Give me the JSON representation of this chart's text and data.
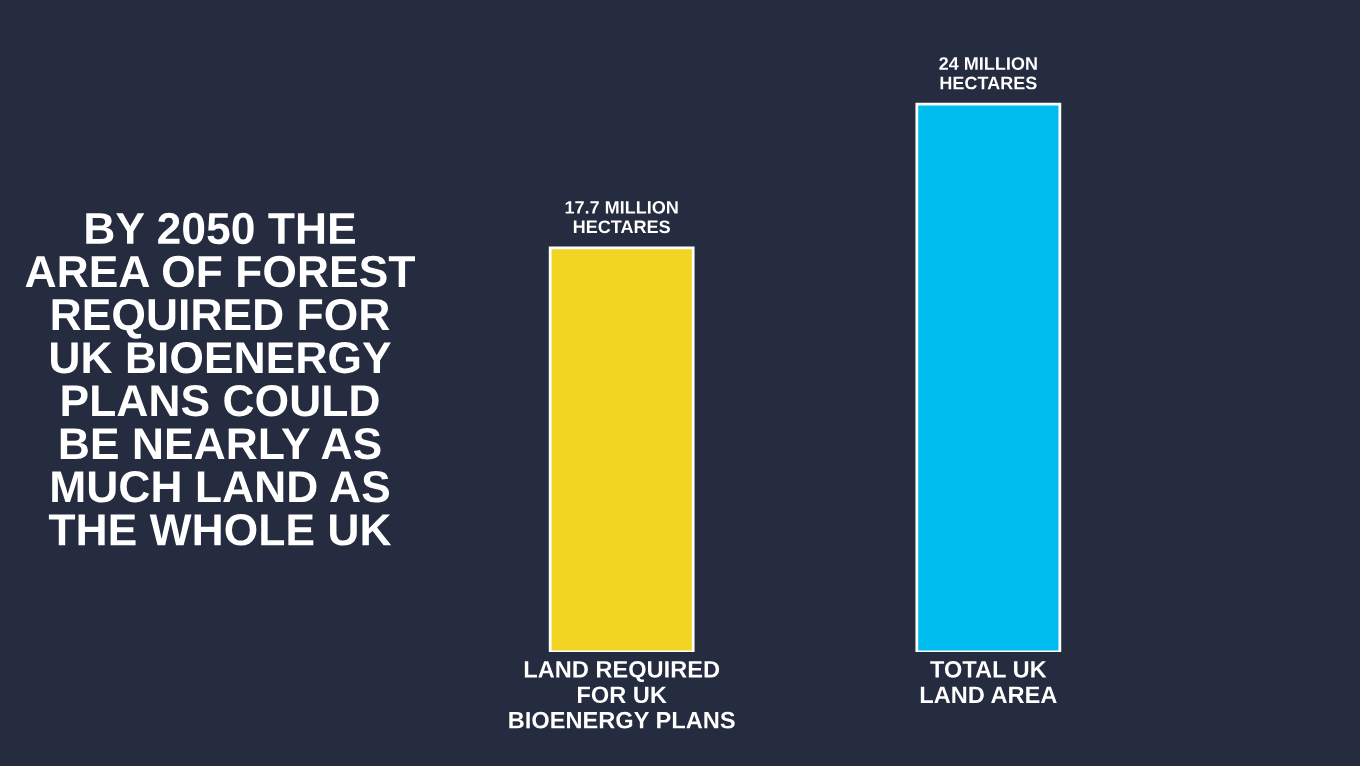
{
  "chart_data": {
    "type": "bar",
    "title": "BY 2050 THE\nAREA OF FOREST\nREQUIRED FOR\nUK BIOENERGY\nPLANS COULD\nBE NEARLY AS\nMUCH LAND AS\nTHE WHOLE UK",
    "categories": [
      "LAND REQUIRED\nFOR UK\nBIOENERGY PLANS",
      "TOTAL UK\nLAND AREA"
    ],
    "values": [
      17.7,
      24
    ],
    "colors": [
      "#f2d422",
      "#00bdf0"
    ],
    "value_labels": [
      "17.7 MILLION\nHECTARES",
      "24 MILLION\nHECTARES"
    ],
    "grid": false,
    "legend": false
  }
}
